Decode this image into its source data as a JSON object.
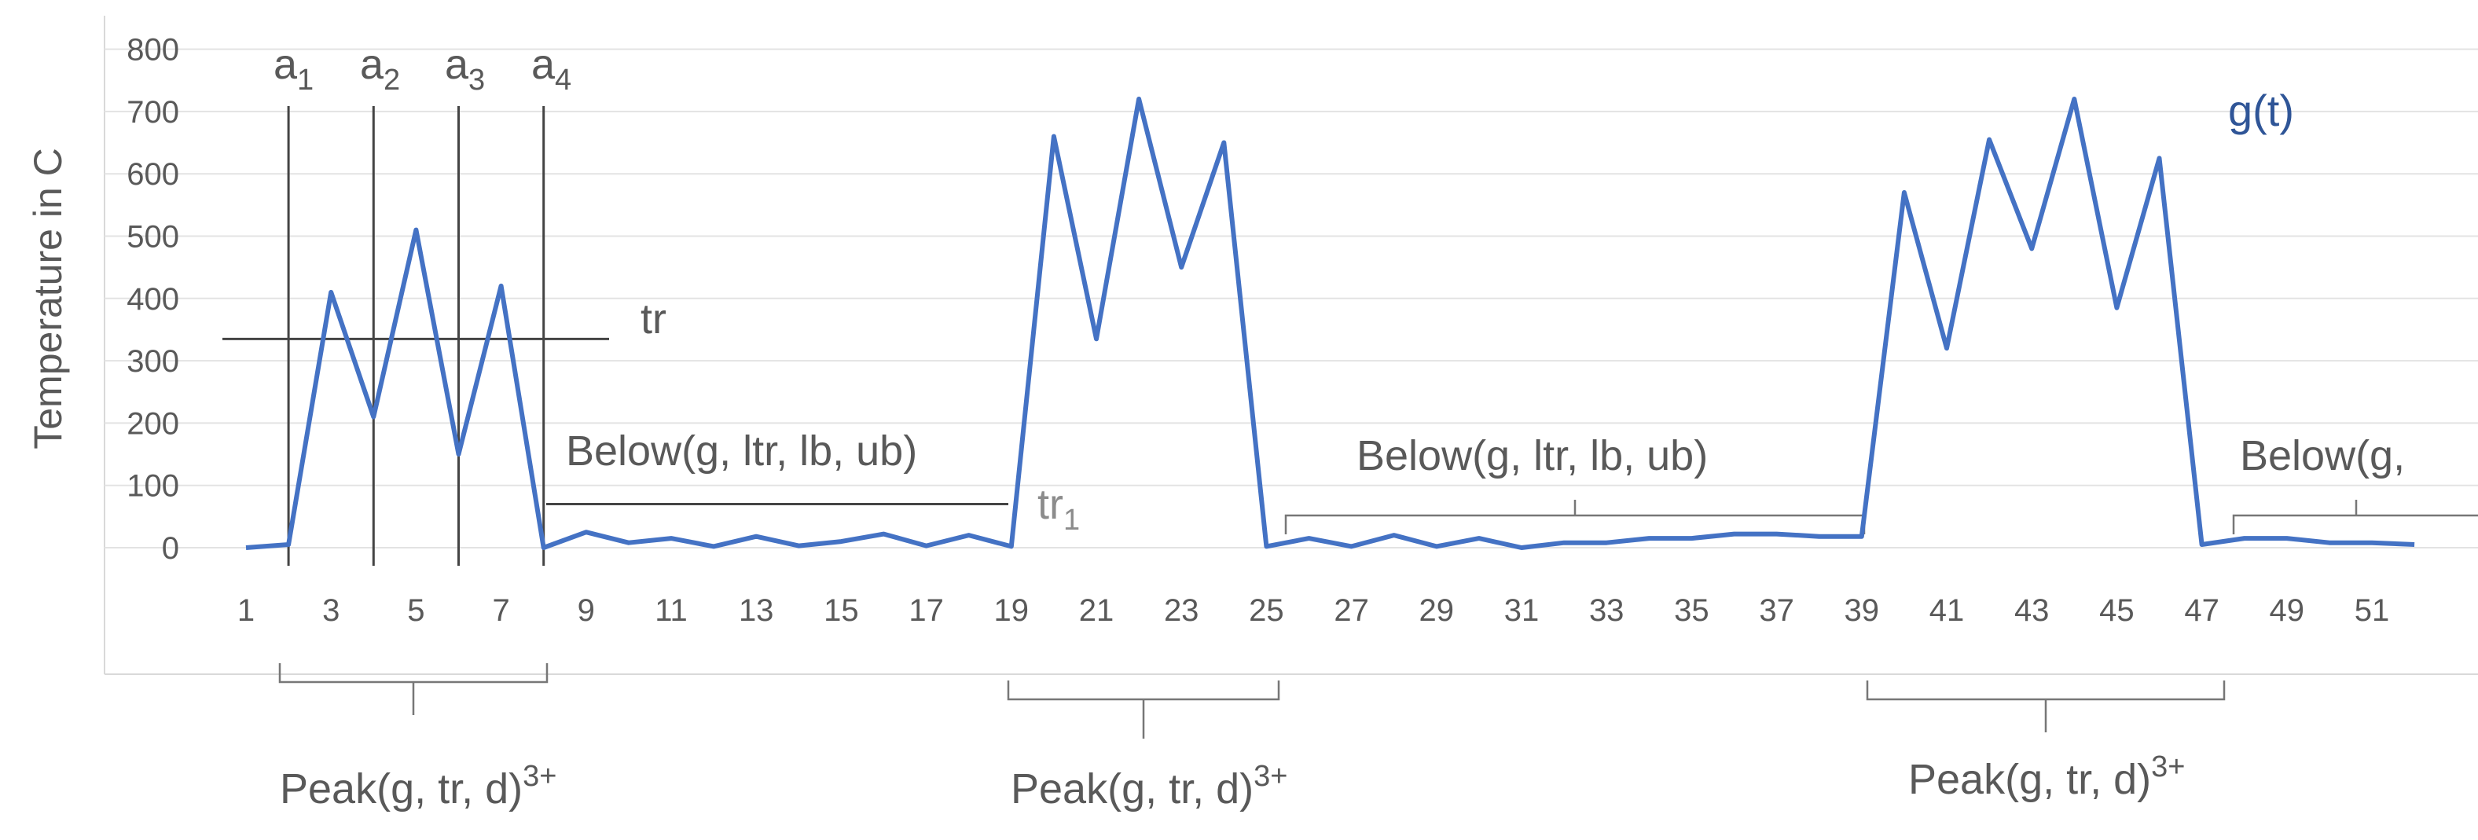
{
  "chart_data": {
    "type": "line",
    "title": "",
    "xlabel": "",
    "ylabel": "Temperature in C",
    "ylim": [
      0,
      800
    ],
    "yticks": [
      0,
      100,
      200,
      300,
      400,
      500,
      600,
      700,
      800
    ],
    "xlim": [
      1,
      52
    ],
    "xtick_labels": [
      "1",
      "3",
      "5",
      "7",
      "9",
      "11",
      "13",
      "15",
      "17",
      "19",
      "21",
      "23",
      "25",
      "27",
      "29",
      "31",
      "33",
      "35",
      "37",
      "39",
      "41",
      "43",
      "45",
      "47",
      "49",
      "51"
    ],
    "grid": true,
    "series": [
      {
        "name": "g(t)",
        "color": "#4472c4",
        "x": [
          1,
          2,
          3,
          4,
          5,
          6,
          7,
          8,
          9,
          10,
          11,
          12,
          13,
          14,
          15,
          16,
          17,
          18,
          19,
          20,
          21,
          22,
          23,
          24,
          25,
          26,
          27,
          28,
          29,
          30,
          31,
          32,
          33,
          34,
          35,
          36,
          37,
          38,
          39,
          40,
          41,
          42,
          43,
          44,
          45,
          46,
          47,
          48,
          49,
          50,
          51,
          52
        ],
        "y": [
          0,
          5,
          410,
          210,
          510,
          150,
          420,
          0,
          25,
          8,
          15,
          2,
          18,
          3,
          10,
          22,
          3,
          20,
          2,
          660,
          335,
          720,
          450,
          650,
          2,
          15,
          2,
          20,
          2,
          15,
          0,
          8,
          8,
          15,
          15,
          22,
          22,
          18,
          18,
          570,
          320,
          655,
          480,
          720,
          385,
          625,
          5,
          15,
          15,
          8,
          8,
          5
        ]
      }
    ],
    "annotations": {
      "a_lines": [
        {
          "label": "a",
          "subscript": "1",
          "x": 2
        },
        {
          "label": "a",
          "subscript": "2",
          "x": 4
        },
        {
          "label": "a",
          "subscript": "3",
          "x": 6
        },
        {
          "label": "a",
          "subscript": "4",
          "x": 8
        }
      ],
      "tr": {
        "label": "tr",
        "y": 335
      },
      "tr1": {
        "label": "tr",
        "subscript": "1",
        "y": 70
      },
      "below": [
        {
          "text": "Below(g, ltr, lb, ub)"
        },
        {
          "text": "Below(g, ltr, lb, ub)"
        },
        {
          "text": "Below(g,"
        }
      ],
      "peaks": [
        {
          "text": "Peak(g, tr, d)",
          "superscript": "3+"
        },
        {
          "text": "Peak(g, tr, d)",
          "superscript": "3+"
        },
        {
          "text": "Peak(g, tr, d)",
          "superscript": "3+"
        }
      ]
    }
  }
}
